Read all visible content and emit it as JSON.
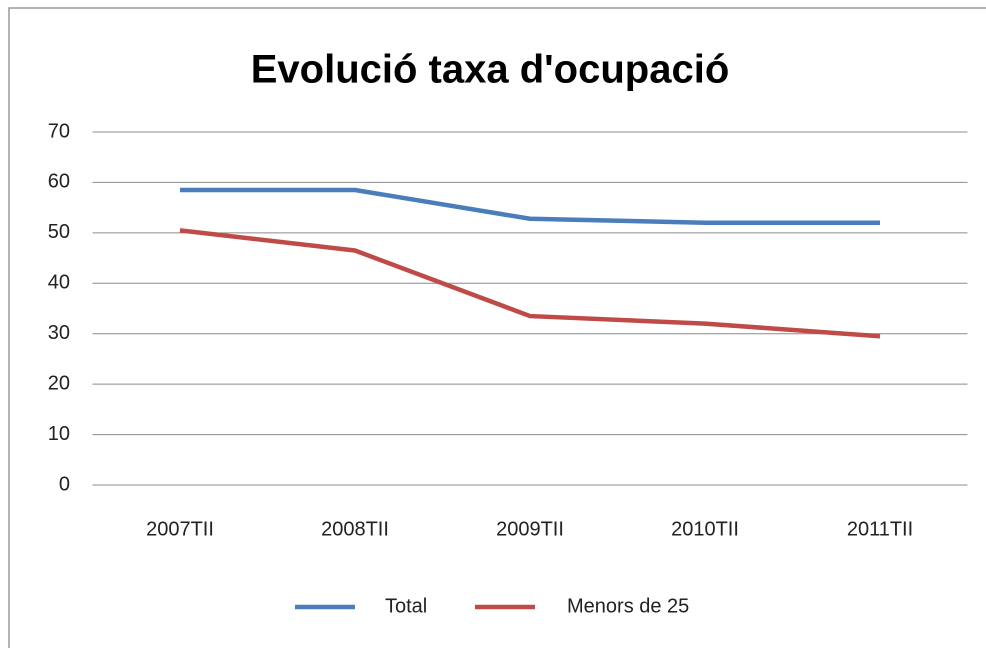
{
  "chart_data": {
    "type": "line",
    "title": "Evolució taxa d'ocupació",
    "categories": [
      "2007TII",
      "2008TII",
      "2009TII",
      "2010TII",
      "2011TII"
    ],
    "series": [
      {
        "name": "Total",
        "color": "#4a7ebb",
        "values": [
          58.5,
          58.5,
          52.8,
          52,
          52
        ]
      },
      {
        "name": "Menors de 25",
        "color": "#be4b48",
        "values": [
          50.5,
          46.5,
          33.5,
          32,
          29.5
        ]
      }
    ],
    "ylim": [
      0,
      70
    ],
    "yticks": [
      0,
      10,
      20,
      30,
      40,
      50,
      60,
      70
    ],
    "grid": true,
    "legend": "bottom"
  }
}
